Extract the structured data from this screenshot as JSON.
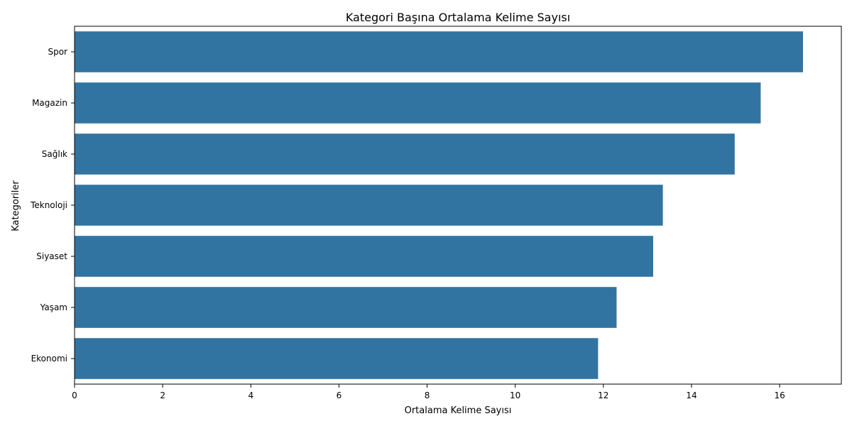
{
  "chart_data": {
    "type": "bar",
    "orientation": "horizontal",
    "title": "Kategori Başına Ortalama Kelime Sayısı",
    "xlabel": "Ortalama Kelime Sayısı",
    "ylabel": "Kategoriler",
    "categories": [
      "Spor",
      "Magazin",
      "Sağlık",
      "Teknoloji",
      "Siyaset",
      "Yaşam",
      "Ekonomi"
    ],
    "values": [
      16.53,
      15.57,
      14.98,
      13.35,
      13.13,
      12.3,
      11.88
    ],
    "xlim": [
      0,
      17.4
    ],
    "xticks": [
      0,
      2,
      4,
      6,
      8,
      10,
      12,
      14,
      16
    ],
    "grid": false,
    "legend": "none",
    "bar_color": "#3274a1"
  }
}
